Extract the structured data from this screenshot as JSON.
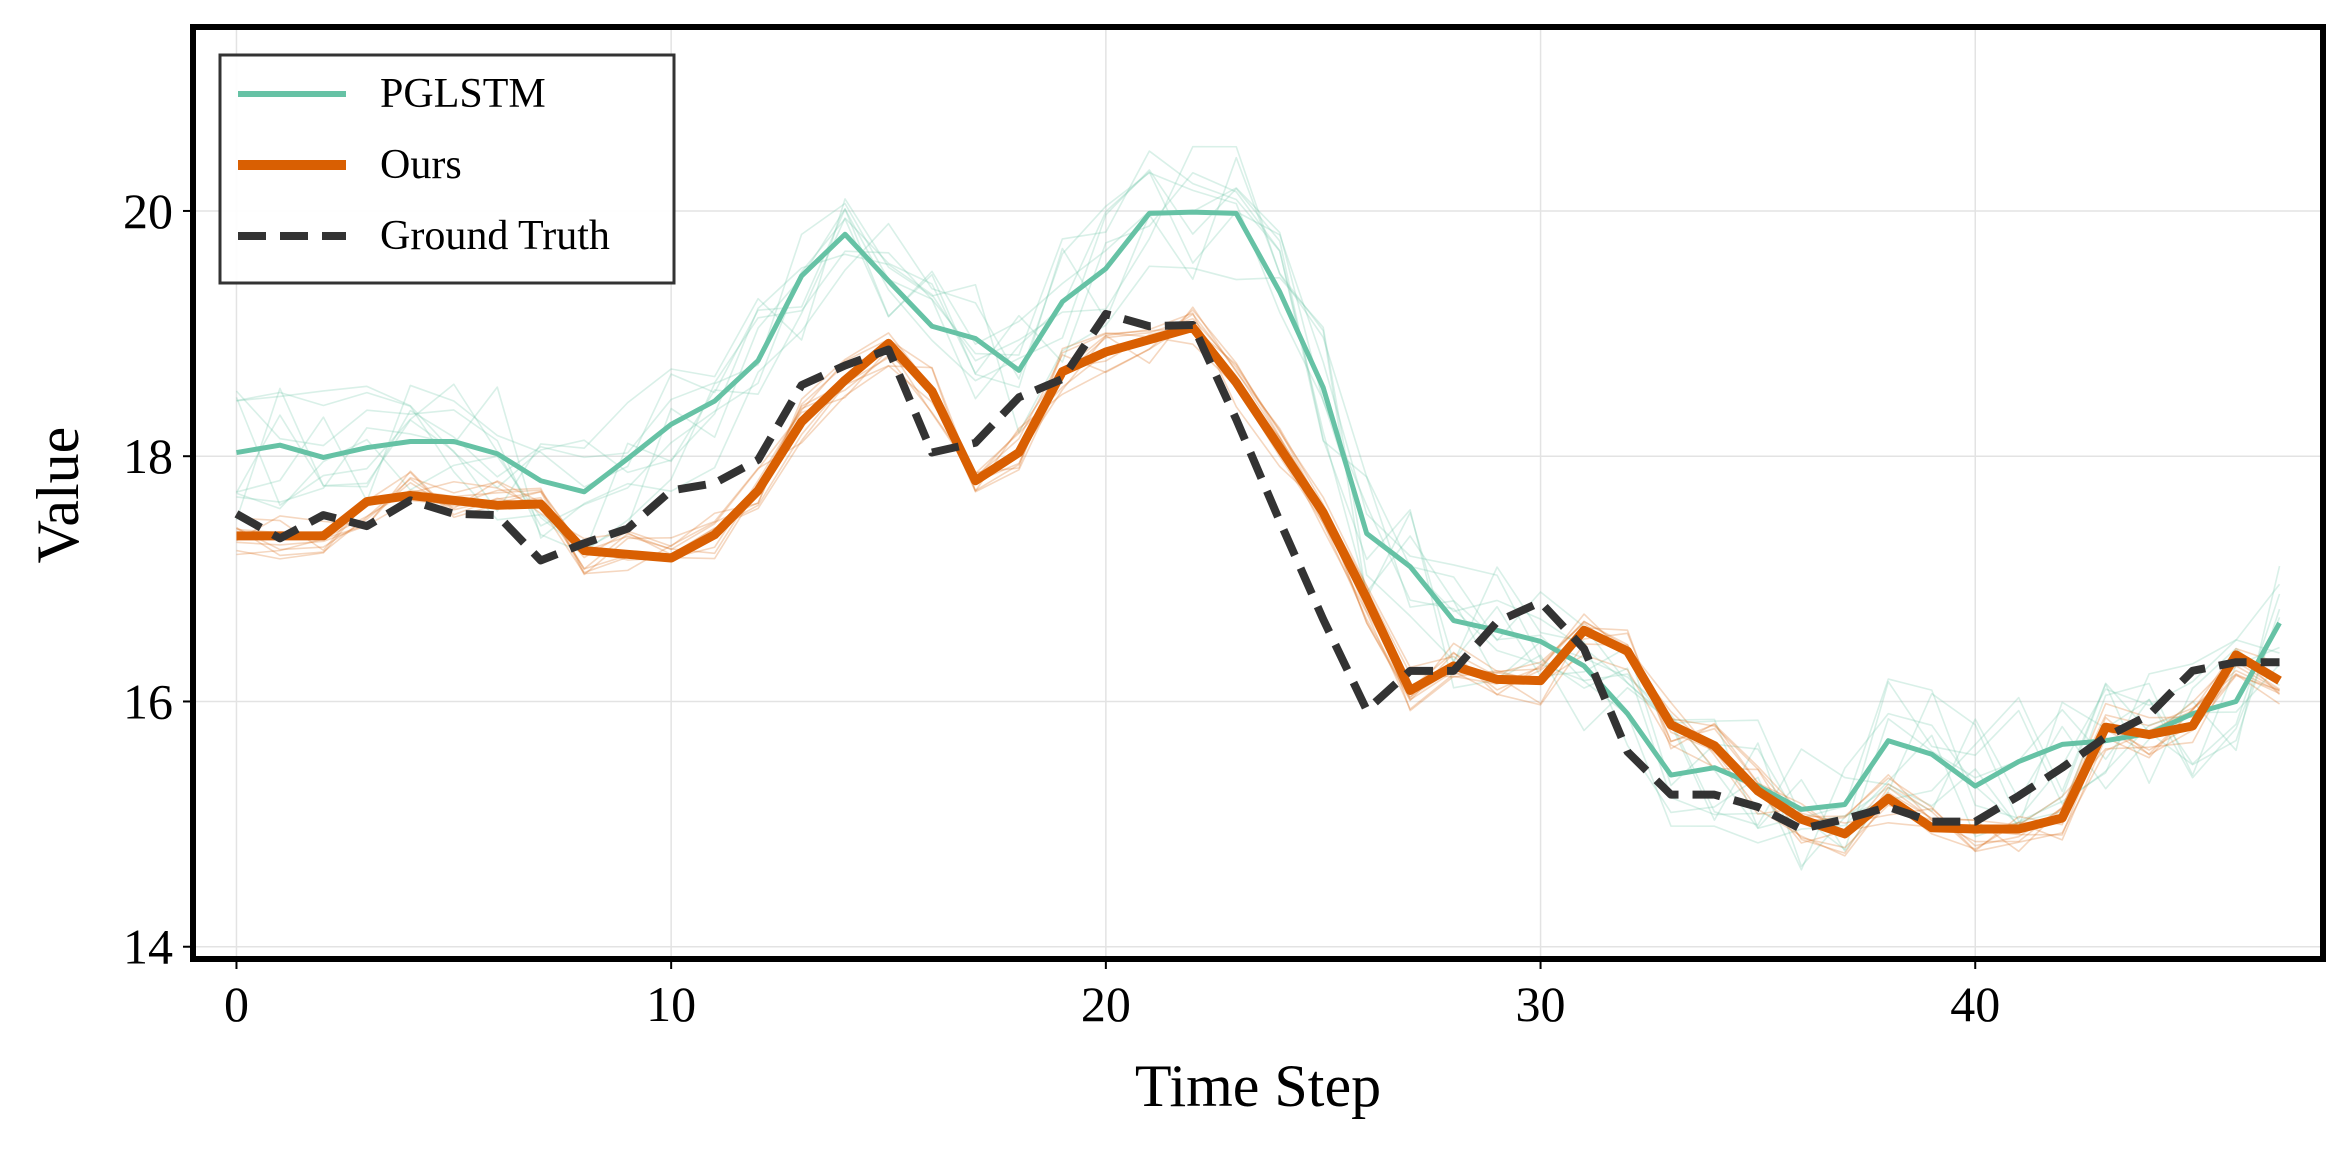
{
  "chart_data": {
    "type": "line",
    "xlabel": "Time Step",
    "ylabel": "Value",
    "xlim": [
      -1,
      48
    ],
    "ylim": [
      13.9,
      21.5
    ],
    "xticks": [
      0,
      10,
      20,
      30,
      40
    ],
    "yticks": [
      14,
      16,
      18,
      20
    ],
    "x_tick_labels": [
      "0",
      "10",
      "20",
      "30",
      "40"
    ],
    "y_tick_labels": [
      "14",
      "16",
      "18",
      "20"
    ],
    "grid": true,
    "legend_position": "top-left",
    "x": [
      0,
      1,
      2,
      3,
      4,
      5,
      6,
      7,
      8,
      9,
      10,
      11,
      12,
      13,
      14,
      15,
      16,
      17,
      18,
      19,
      20,
      21,
      22,
      23,
      24,
      25,
      26,
      27,
      28,
      29,
      30,
      31,
      32,
      33,
      34,
      35,
      36,
      37,
      38,
      39,
      40,
      41,
      42,
      43,
      44,
      45,
      46,
      47
    ],
    "series": [
      {
        "name": "PGLSTM",
        "color": "#66c2a5",
        "style": "solid",
        "values": [
          18.03,
          18.09,
          17.99,
          18.07,
          18.12,
          18.12,
          18.02,
          17.8,
          17.71,
          17.98,
          18.26,
          18.45,
          18.78,
          19.47,
          19.81,
          19.43,
          19.06,
          18.96,
          18.7,
          19.26,
          19.53,
          19.98,
          19.99,
          19.98,
          19.34,
          18.56,
          17.37,
          17.1,
          16.66,
          16.58,
          16.49,
          16.29,
          15.9,
          15.4,
          15.46,
          15.31,
          15.12,
          15.16,
          15.68,
          15.57,
          15.31,
          15.51,
          15.65,
          15.68,
          15.74,
          15.9,
          16.0,
          16.64
        ]
      },
      {
        "name": "Ours",
        "color": "#d95f02",
        "style": "solid",
        "values": [
          17.35,
          17.35,
          17.35,
          17.63,
          17.68,
          17.64,
          17.6,
          17.61,
          17.23,
          17.2,
          17.17,
          17.36,
          17.72,
          18.28,
          18.62,
          18.92,
          18.53,
          17.8,
          18.03,
          18.69,
          18.85,
          18.95,
          19.05,
          18.6,
          18.07,
          17.54,
          16.84,
          16.09,
          16.29,
          16.18,
          16.17,
          16.58,
          16.41,
          15.81,
          15.64,
          15.27,
          15.04,
          14.92,
          15.21,
          14.97,
          14.96,
          14.96,
          15.05,
          15.79,
          15.73,
          15.8,
          16.38,
          16.17
        ]
      },
      {
        "name": "Ground Truth",
        "color": "#333333",
        "style": "dashed",
        "values": [
          17.53,
          17.33,
          17.52,
          17.43,
          17.64,
          17.53,
          17.52,
          17.15,
          17.29,
          17.41,
          17.72,
          17.78,
          17.97,
          18.58,
          18.74,
          18.87,
          18.03,
          18.11,
          18.48,
          18.63,
          19.16,
          19.06,
          19.07,
          18.3,
          17.47,
          16.67,
          15.93,
          16.25,
          16.25,
          16.65,
          16.81,
          16.43,
          15.59,
          15.24,
          15.24,
          15.14,
          14.96,
          15.04,
          15.14,
          15.02,
          15.02,
          15.23,
          15.46,
          15.71,
          15.89,
          16.25,
          16.32,
          16.32
        ]
      }
    ],
    "legend": [
      "PGLSTM",
      "Ours",
      "Ground Truth"
    ]
  }
}
